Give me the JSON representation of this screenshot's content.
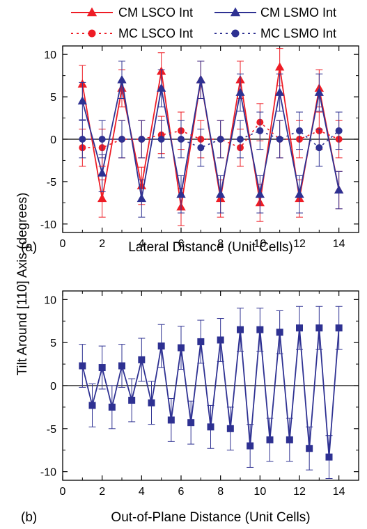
{
  "colors": {
    "red": "#ee1c25",
    "blue": "#2e3192",
    "axis": "#000000"
  },
  "legend": {
    "items": [
      {
        "label": "CM LSCO Int",
        "series_ref": "cm_lsco"
      },
      {
        "label": "CM LSMO Int",
        "series_ref": "cm_lsmo"
      },
      {
        "label": "MC LSCO Int",
        "series_ref": "mc_lsco"
      },
      {
        "label": "MC LSMO Int",
        "series_ref": "mc_lsmo"
      }
    ]
  },
  "shared_ylabel": "Tilt Around [110] Axis (degrees)",
  "chart_data": [
    {
      "type": "line",
      "panel_label": "(a)",
      "xlabel": "Lateral Distance (Unit Cells)",
      "ylabel": "Tilt Around [110] Axis (degrees)",
      "xlim": [
        0,
        15
      ],
      "ylim": [
        -11,
        11
      ],
      "x_ticks": [
        0,
        2,
        4,
        6,
        8,
        10,
        12,
        14
      ],
      "y_ticks": [
        -10,
        -5,
        0,
        5,
        10
      ],
      "zero_line": true,
      "grid": false,
      "legend_position": "top",
      "series": [
        {
          "id": "cm_lsco",
          "name": "CM LSCO Int",
          "color": "#ee1c25",
          "marker": "triangle",
          "line": "solid",
          "x": [
            1,
            2,
            3,
            4,
            5,
            6,
            7,
            8,
            9,
            10,
            11,
            12,
            13,
            14
          ],
          "y": [
            6.5,
            -7,
            6,
            -5.5,
            8,
            -8,
            7,
            -7,
            7,
            -7.5,
            8.5,
            -7,
            6,
            -6
          ],
          "err": [
            2.2,
            2.2,
            2.2,
            2.2,
            2.2,
            2.2,
            2.2,
            2.2,
            2.2,
            2.2,
            2.2,
            2.2,
            2.2,
            2.2
          ]
        },
        {
          "id": "cm_lsmo",
          "name": "CM LSMO Int",
          "color": "#2e3192",
          "marker": "triangle",
          "line": "solid",
          "x": [
            1,
            2,
            3,
            4,
            5,
            6,
            7,
            8,
            9,
            10,
            11,
            12,
            13,
            14
          ],
          "y": [
            4.5,
            -4,
            7,
            -7,
            6,
            -6.5,
            7,
            -6.5,
            5.5,
            -6.5,
            5.5,
            -6.5,
            5.5,
            -6
          ],
          "err": [
            2.2,
            2.2,
            2.2,
            2.2,
            2.2,
            2.2,
            2.2,
            2.2,
            2.2,
            2.2,
            2.2,
            2.2,
            2.2,
            2.2
          ]
        },
        {
          "id": "mc_lsco",
          "name": "MC LSCO Int",
          "color": "#ee1c25",
          "marker": "circle",
          "line": "dotted",
          "x": [
            1,
            2,
            3,
            4,
            5,
            6,
            7,
            8,
            9,
            10,
            11,
            12,
            13,
            14
          ],
          "y": [
            -1,
            -1,
            0,
            0,
            0.5,
            1,
            0,
            0,
            -1,
            2,
            0,
            0,
            1,
            0
          ],
          "err": [
            2.2,
            2.2,
            2.2,
            2.2,
            2.2,
            2.2,
            2.2,
            2.2,
            2.2,
            2.2,
            2.2,
            2.2,
            2.2,
            2.2
          ]
        },
        {
          "id": "mc_lsmo",
          "name": "MC LSMO Int",
          "color": "#2e3192",
          "marker": "circle",
          "line": "dotted",
          "x": [
            1,
            2,
            3,
            4,
            5,
            6,
            7,
            8,
            9,
            10,
            11,
            12,
            13,
            14
          ],
          "y": [
            0,
            0,
            0,
            0,
            0,
            0,
            -1,
            0,
            0,
            1,
            0,
            1,
            -1,
            1
          ],
          "err": [
            2.2,
            2.2,
            2.2,
            2.2,
            2.2,
            2.2,
            2.2,
            2.2,
            2.2,
            2.2,
            2.2,
            2.2,
            2.2,
            2.2
          ]
        }
      ]
    },
    {
      "type": "line",
      "panel_label": "(b)",
      "xlabel": "Out-of-Plane Distance (Unit Cells)",
      "ylabel": "Tilt Around [110] Axis (degrees)",
      "xlim": [
        0,
        15
      ],
      "ylim": [
        -11,
        11
      ],
      "x_ticks": [
        0,
        2,
        4,
        6,
        8,
        10,
        12,
        14
      ],
      "y_ticks": [
        -10,
        -5,
        0,
        5,
        10
      ],
      "zero_line": true,
      "grid": false,
      "series": [
        {
          "id": "oop",
          "color": "#2e3192",
          "marker": "square",
          "line": "solid",
          "x": [
            1,
            1.5,
            2,
            2.5,
            3,
            3.5,
            4,
            4.5,
            5,
            5.5,
            6,
            6.5,
            7,
            7.5,
            8,
            8.5,
            9,
            9.5,
            10,
            10.5,
            11,
            11.5,
            12,
            12.5,
            13,
            13.5,
            14
          ],
          "y": [
            2.3,
            -2.3,
            2.1,
            -2.5,
            2.3,
            -1.7,
            3,
            -2,
            4.6,
            -4,
            4.4,
            -4.3,
            5.1,
            -4.8,
            5.3,
            -5,
            6.5,
            -7,
            6.5,
            -6.3,
            6.2,
            -6.3,
            6.7,
            -7.3,
            6.7,
            -8.3,
            6.7
          ],
          "err": [
            2.5,
            2.5,
            2.5,
            2.5,
            2.5,
            2.5,
            2.5,
            2.5,
            2.5,
            2.5,
            2.5,
            2.5,
            2.5,
            2.5,
            2.5,
            2.5,
            2.5,
            2.5,
            2.5,
            2.5,
            2.5,
            2.5,
            2.5,
            2.5,
            2.5,
            2.5,
            2.5
          ]
        }
      ]
    }
  ]
}
